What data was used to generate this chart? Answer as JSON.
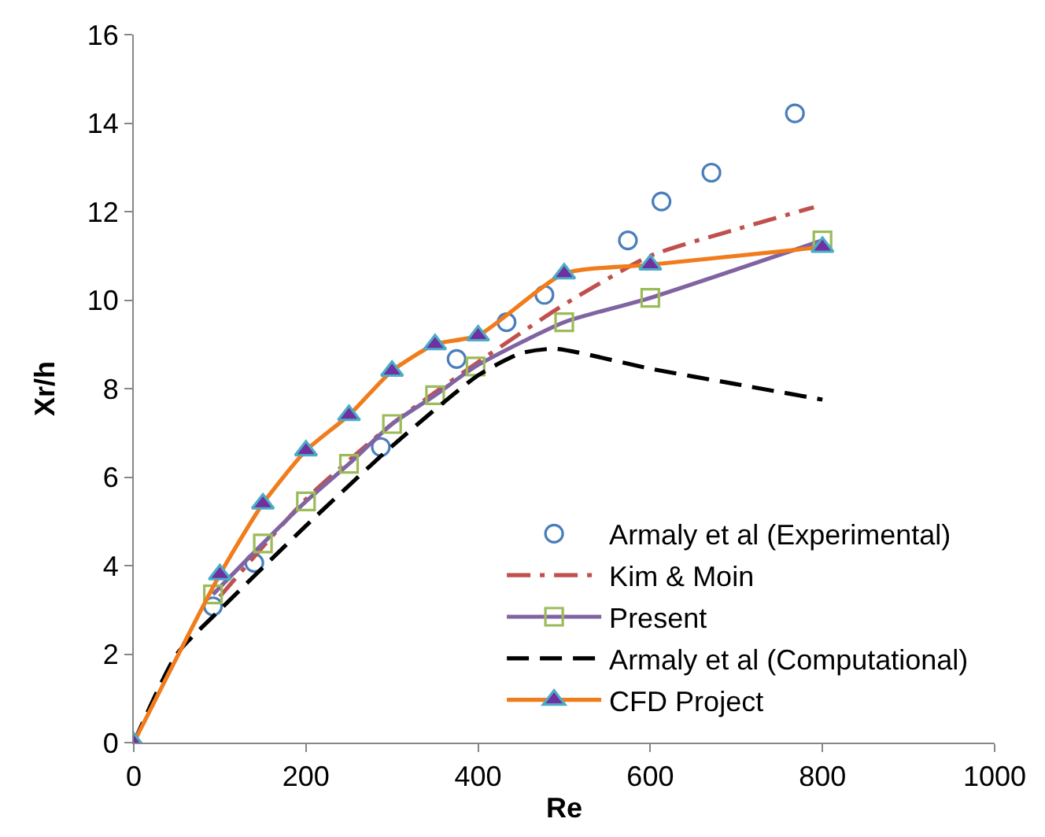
{
  "chart_data": {
    "type": "line",
    "xlabel": "Re",
    "ylabel": "Xr/h",
    "xlim": [
      0,
      1000
    ],
    "xticks": [
      0,
      200,
      400,
      600,
      800,
      1000
    ],
    "ylim": [
      0,
      16
    ],
    "yticks": [
      0,
      2,
      4,
      6,
      8,
      10,
      12,
      14,
      16
    ],
    "grid": false,
    "legend": "bottom right",
    "series": [
      {
        "name": "Armaly et al (Experimental)",
        "type": "scatter",
        "color": "#4a7ebb",
        "marker": "circle",
        "x": [
          92,
          140,
          287,
          375,
          433,
          477,
          574,
          613,
          671,
          768
        ],
        "values": [
          3.08,
          4.06,
          6.68,
          8.67,
          9.5,
          10.12,
          11.35,
          12.23,
          12.88,
          14.22
        ]
      },
      {
        "name": "Kim & Moin",
        "color": "#c0504d",
        "marker": "none",
        "line_style": "dashdot",
        "x": [
          100,
          200,
          300,
          400,
          500,
          600,
          700,
          790
        ],
        "values": [
          3.3,
          5.5,
          7.2,
          8.6,
          9.9,
          11.0,
          11.6,
          12.1
        ]
      },
      {
        "name": "Present",
        "color": "#8064a2",
        "marker": "square",
        "line_style": "solid",
        "x": [
          92,
          150,
          200,
          250,
          300,
          350,
          397,
          500,
          600,
          800
        ],
        "values": [
          3.35,
          4.5,
          5.45,
          6.3,
          7.2,
          7.85,
          8.5,
          9.5,
          10.05,
          11.35
        ]
      },
      {
        "name": "Armaly et al (Computational)",
        "color": "#000000",
        "marker": "none",
        "line_style": "dashed",
        "x": [
          0,
          50,
          100,
          200,
          300,
          400,
          450,
          490,
          600,
          700,
          800
        ],
        "values": [
          0,
          2,
          3,
          4.9,
          6.7,
          8.3,
          8.8,
          8.9,
          8.45,
          8.1,
          7.75
        ]
      },
      {
        "name": "CFD Project",
        "color": "#f07c1c",
        "marker": "triangle",
        "line_style": "solid",
        "x": [
          0,
          100,
          150,
          200,
          250,
          300,
          350,
          400,
          500,
          600,
          800
        ],
        "values": [
          0,
          3.8,
          5.4,
          6.6,
          7.4,
          8.4,
          9.0,
          9.2,
          10.6,
          10.8,
          11.2
        ]
      }
    ]
  }
}
